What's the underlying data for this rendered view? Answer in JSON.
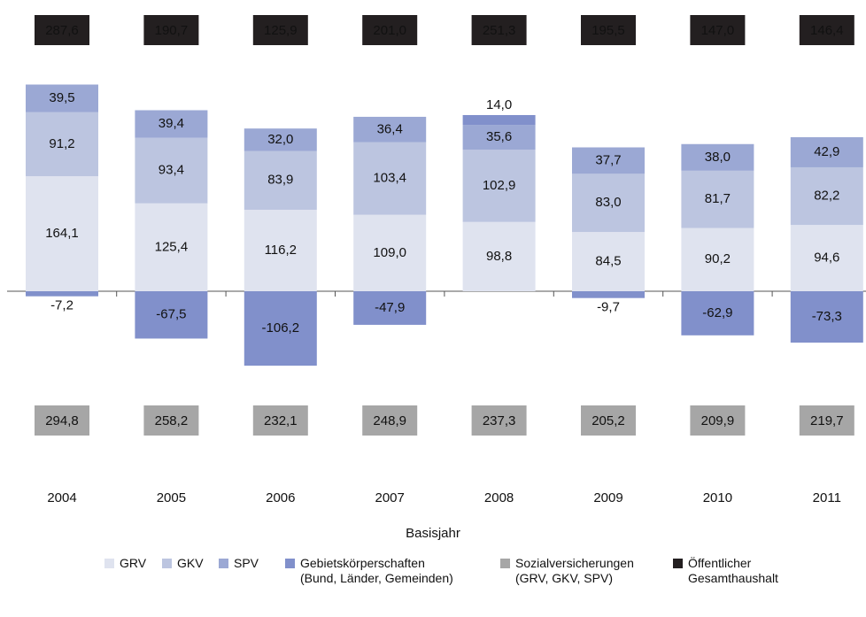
{
  "chart_data": {
    "type": "bar",
    "stacked": true,
    "x_label": "Basisjahr",
    "categories": [
      "2004",
      "2005",
      "2006",
      "2007",
      "2008",
      "2009",
      "2010",
      "2011"
    ],
    "series": [
      {
        "name": "GRV",
        "color": "#dfe3ef",
        "values": [
          164.1,
          125.4,
          116.2,
          109.0,
          98.8,
          84.5,
          90.2,
          94.6
        ],
        "value_labels": [
          "164,1",
          "125,4",
          "116,2",
          "109,0",
          "98,8",
          "84,5",
          "90,2",
          "94,6"
        ]
      },
      {
        "name": "GKV",
        "color": "#bcc5e0",
        "values": [
          91.2,
          93.4,
          83.9,
          103.4,
          102.9,
          83.0,
          81.7,
          82.2
        ],
        "value_labels": [
          "91,2",
          "93,4",
          "83,9",
          "103,4",
          "102,9",
          "83,0",
          "81,7",
          "82,2"
        ]
      },
      {
        "name": "SPV",
        "color": "#9ba8d4",
        "values": [
          39.5,
          39.4,
          32.0,
          36.4,
          35.6,
          37.7,
          38.0,
          42.9
        ],
        "value_labels": [
          "39,5",
          "39,4",
          "32,0",
          "36,4",
          "35,6",
          "37,7",
          "38,0",
          "42,9"
        ]
      },
      {
        "name": "Gebietskörperschaften\n(Bund, Länder, Gemeinden)",
        "color": "#8190cb",
        "values": [
          -7.2,
          -67.5,
          -106.2,
          -47.9,
          14.0,
          -9.7,
          -62.9,
          -73.3
        ],
        "value_labels": [
          "-7,2",
          "-67,5",
          "-106,2",
          "-47,9",
          "14,0",
          "-9,7",
          "-62,9",
          "-73,3"
        ]
      }
    ],
    "totals": [
      {
        "name": "Sozialversicherungen\n(GRV, GKV, SPV)",
        "color": "#a6a6a6",
        "text_color": "#000000",
        "values": [
          294.8,
          258.2,
          232.1,
          248.9,
          237.3,
          205.2,
          209.9,
          219.7
        ],
        "value_labels": [
          "294,8",
          "258,2",
          "232,1",
          "248,9",
          "237,3",
          "205,2",
          "209,9",
          "219,7"
        ]
      },
      {
        "name": "Öffentlicher\nGesamthaushalt",
        "color": "#231f20",
        "text_color": "#ffffff",
        "values": [
          287.6,
          190.7,
          125.9,
          201.0,
          251.3,
          195.5,
          147.0,
          146.4
        ],
        "value_labels": [
          "287,6",
          "190,7",
          "125,9",
          "201,0",
          "251,3",
          "195,5",
          "147,0",
          "146,4"
        ]
      }
    ]
  }
}
